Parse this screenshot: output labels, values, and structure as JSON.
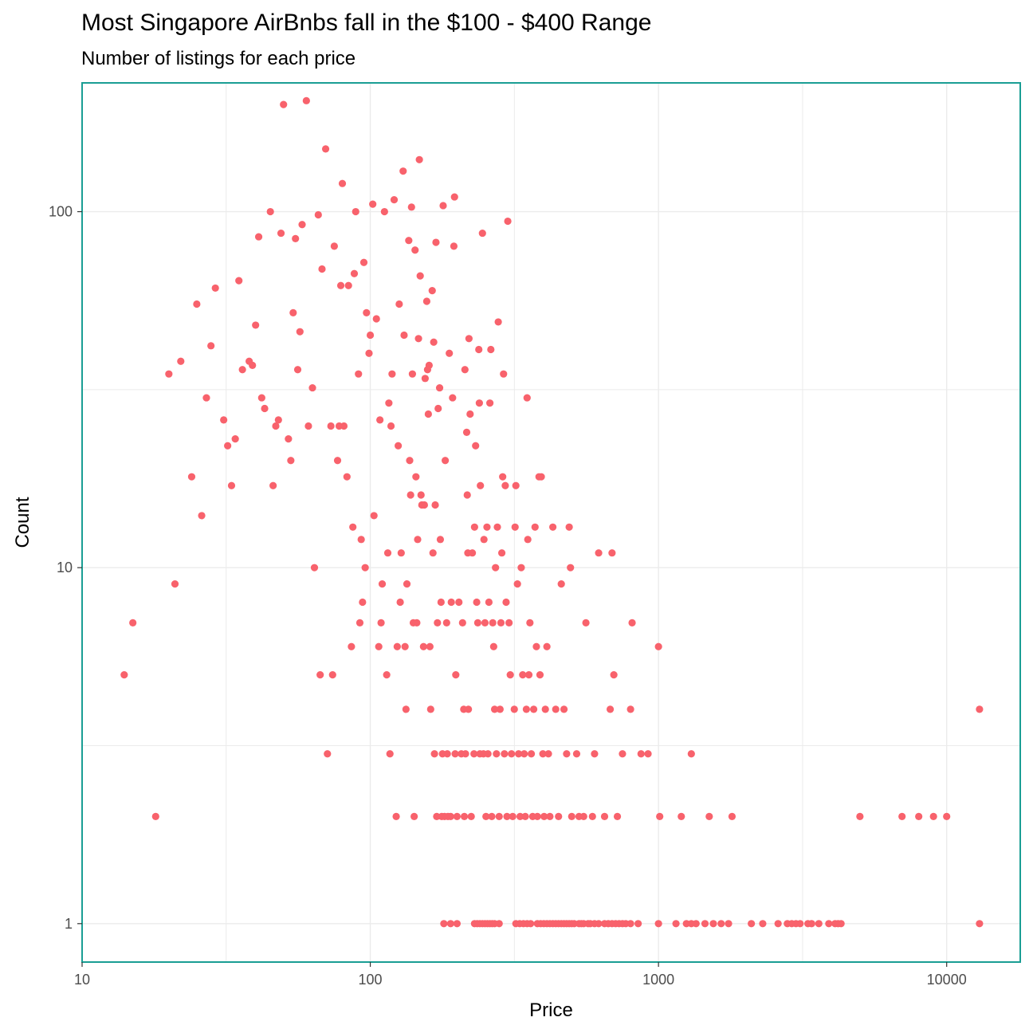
{
  "chart_data": {
    "type": "scatter",
    "title": "Most Singapore AirBnbs fall in the $100 - $400 Range",
    "subtitle": "Number of listings for each price",
    "xlabel": "Price",
    "ylabel": "Count",
    "x_scale": "log10",
    "y_scale": "log10",
    "xlim": [
      10,
      18000
    ],
    "ylim": [
      0.78,
      230
    ],
    "x_ticks": [
      10,
      100,
      1000,
      10000
    ],
    "x_tick_labels": [
      "10",
      "100",
      "1000",
      "10000"
    ],
    "y_ticks": [
      1,
      10,
      100
    ],
    "y_tick_labels": [
      "1",
      "10",
      "100"
    ],
    "grid": true,
    "colors": {
      "points": "#f8626c",
      "panel_border": "#1a9e94",
      "grid": "#ebebeb"
    },
    "points": [
      [
        14,
        5
      ],
      [
        15,
        7
      ],
      [
        18,
        2
      ],
      [
        20,
        35
      ],
      [
        21,
        9
      ],
      [
        22,
        38
      ],
      [
        24,
        18
      ],
      [
        25,
        55
      ],
      [
        26,
        14
      ],
      [
        27,
        30
      ],
      [
        28,
        42
      ],
      [
        29,
        61
      ],
      [
        31,
        26
      ],
      [
        32,
        22
      ],
      [
        33,
        17
      ],
      [
        34,
        23
      ],
      [
        35,
        64
      ],
      [
        36,
        36
      ],
      [
        38,
        38
      ],
      [
        39,
        37
      ],
      [
        40,
        48
      ],
      [
        41,
        85
      ],
      [
        42,
        30
      ],
      [
        43,
        28
      ],
      [
        45,
        100
      ],
      [
        46,
        17
      ],
      [
        47,
        25
      ],
      [
        48,
        26
      ],
      [
        49,
        87
      ],
      [
        50,
        200
      ],
      [
        52,
        23
      ],
      [
        53,
        20
      ],
      [
        54,
        52
      ],
      [
        55,
        84
      ],
      [
        57,
        46
      ],
      [
        56,
        36
      ],
      [
        58,
        92
      ],
      [
        60,
        205
      ],
      [
        61,
        25
      ],
      [
        63,
        32
      ],
      [
        64,
        10
      ],
      [
        66,
        98
      ],
      [
        67,
        5
      ],
      [
        68,
        69
      ],
      [
        70,
        150
      ],
      [
        71,
        3
      ],
      [
        73,
        25
      ],
      [
        74,
        5
      ],
      [
        75,
        80
      ],
      [
        77,
        20
      ],
      [
        78,
        25
      ],
      [
        79,
        62
      ],
      [
        80,
        120
      ],
      [
        81,
        25
      ],
      [
        83,
        18
      ],
      [
        84,
        62
      ],
      [
        86,
        6
      ],
      [
        87,
        13
      ],
      [
        88,
        67
      ],
      [
        89,
        100
      ],
      [
        91,
        35
      ],
      [
        92,
        7
      ],
      [
        93,
        12
      ],
      [
        94,
        8
      ],
      [
        95,
        72
      ],
      [
        96,
        10
      ],
      [
        97,
        52
      ],
      [
        99,
        40
      ],
      [
        100,
        45
      ],
      [
        102,
        105
      ],
      [
        103,
        14
      ],
      [
        105,
        50
      ],
      [
        107,
        6
      ],
      [
        108,
        26
      ],
      [
        109,
        7
      ],
      [
        110,
        9
      ],
      [
        112,
        100
      ],
      [
        114,
        5
      ],
      [
        115,
        11
      ],
      [
        116,
        29
      ],
      [
        117,
        3
      ],
      [
        118,
        25
      ],
      [
        119,
        35
      ],
      [
        121,
        108
      ],
      [
        123,
        2
      ],
      [
        124,
        6
      ],
      [
        125,
        22
      ],
      [
        126,
        55
      ],
      [
        127,
        8
      ],
      [
        128,
        11
      ],
      [
        130,
        130
      ],
      [
        131,
        45
      ],
      [
        132,
        6
      ],
      [
        133,
        4
      ],
      [
        134,
        9
      ],
      [
        136,
        83
      ],
      [
        137,
        20
      ],
      [
        138,
        16
      ],
      [
        139,
        103
      ],
      [
        140,
        35
      ],
      [
        141,
        7
      ],
      [
        142,
        2
      ],
      [
        143,
        78
      ],
      [
        144,
        18
      ],
      [
        145,
        7
      ],
      [
        146,
        12
      ],
      [
        147,
        44
      ],
      [
        148,
        140
      ],
      [
        149,
        66
      ],
      [
        150,
        16
      ],
      [
        151,
        15
      ],
      [
        153,
        6
      ],
      [
        154,
        15
      ],
      [
        155,
        34
      ],
      [
        157,
        56
      ],
      [
        158,
        36
      ],
      [
        159,
        27
      ],
      [
        160,
        37
      ],
      [
        161,
        6
      ],
      [
        162,
        4
      ],
      [
        164,
        60
      ],
      [
        165,
        11
      ],
      [
        166,
        43
      ],
      [
        167,
        3
      ],
      [
        168,
        15
      ],
      [
        169,
        82
      ],
      [
        170,
        2
      ],
      [
        171,
        7
      ],
      [
        172,
        28
      ],
      [
        174,
        32
      ],
      [
        175,
        12
      ],
      [
        176,
        8
      ],
      [
        177,
        2
      ],
      [
        178,
        3
      ],
      [
        179,
        104
      ],
      [
        181,
        2
      ],
      [
        182,
        20
      ],
      [
        184,
        7
      ],
      [
        185,
        3
      ],
      [
        186,
        2
      ],
      [
        188,
        40
      ],
      [
        190,
        2
      ],
      [
        191,
        8
      ],
      [
        193,
        30
      ],
      [
        195,
        80
      ],
      [
        196,
        110
      ],
      [
        197,
        3
      ],
      [
        198,
        5
      ],
      [
        200,
        2
      ],
      [
        203,
        8
      ],
      [
        207,
        3
      ],
      [
        209,
        7
      ],
      [
        211,
        4
      ],
      [
        212,
        2
      ],
      [
        213,
        36
      ],
      [
        214,
        3
      ],
      [
        216,
        24
      ],
      [
        217,
        16
      ],
      [
        218,
        11
      ],
      [
        219,
        4
      ],
      [
        220,
        44
      ],
      [
        222,
        27
      ],
      [
        224,
        2
      ],
      [
        226,
        11
      ],
      [
        229,
        3
      ],
      [
        230,
        13
      ],
      [
        232,
        22
      ],
      [
        234,
        8
      ],
      [
        236,
        7
      ],
      [
        238,
        41
      ],
      [
        239,
        29
      ],
      [
        240,
        3
      ],
      [
        241,
        17
      ],
      [
        245,
        87
      ],
      [
        247,
        3
      ],
      [
        248,
        12
      ],
      [
        250,
        7
      ],
      [
        252,
        2
      ],
      [
        254,
        13
      ],
      [
        256,
        3
      ],
      [
        258,
        8
      ],
      [
        260,
        29
      ],
      [
        262,
        41
      ],
      [
        264,
        2
      ],
      [
        266,
        7
      ],
      [
        268,
        6
      ],
      [
        270,
        4
      ],
      [
        272,
        10
      ],
      [
        274,
        3
      ],
      [
        276,
        13
      ],
      [
        278,
        49
      ],
      [
        280,
        2
      ],
      [
        282,
        4
      ],
      [
        284,
        7
      ],
      [
        286,
        11
      ],
      [
        288,
        18
      ],
      [
        290,
        35
      ],
      [
        292,
        3
      ],
      [
        294,
        17
      ],
      [
        296,
        8
      ],
      [
        298,
        2
      ],
      [
        300,
        94
      ],
      [
        303,
        7
      ],
      [
        306,
        5
      ],
      [
        309,
        3
      ],
      [
        312,
        2
      ],
      [
        316,
        4
      ],
      [
        318,
        13
      ],
      [
        320,
        17
      ],
      [
        324,
        9
      ],
      [
        327,
        3
      ],
      [
        331,
        2
      ],
      [
        334,
        10
      ],
      [
        338,
        5
      ],
      [
        342,
        3
      ],
      [
        345,
        2
      ],
      [
        348,
        4
      ],
      [
        350,
        30
      ],
      [
        352,
        12
      ],
      [
        355,
        5
      ],
      [
        358,
        7
      ],
      [
        362,
        3
      ],
      [
        366,
        2
      ],
      [
        369,
        4
      ],
      [
        373,
        13
      ],
      [
        377,
        6
      ],
      [
        380,
        2
      ],
      [
        385,
        18
      ],
      [
        388,
        5
      ],
      [
        392,
        18
      ],
      [
        397,
        3
      ],
      [
        401,
        2
      ],
      [
        405,
        4
      ],
      [
        410,
        6
      ],
      [
        415,
        3
      ],
      [
        420,
        2
      ],
      [
        430,
        13
      ],
      [
        440,
        4
      ],
      [
        450,
        2
      ],
      [
        460,
        9
      ],
      [
        470,
        4
      ],
      [
        480,
        3
      ],
      [
        490,
        13
      ],
      [
        495,
        10
      ],
      [
        500,
        2
      ],
      [
        520,
        3
      ],
      [
        530,
        2
      ],
      [
        550,
        2
      ],
      [
        560,
        7
      ],
      [
        590,
        2
      ],
      [
        600,
        3
      ],
      [
        620,
        11
      ],
      [
        650,
        2
      ],
      [
        680,
        4
      ],
      [
        690,
        11
      ],
      [
        700,
        5
      ],
      [
        720,
        2
      ],
      [
        750,
        3
      ],
      [
        800,
        4
      ],
      [
        810,
        7
      ],
      [
        870,
        3
      ],
      [
        920,
        3
      ],
      [
        1000,
        6
      ],
      [
        1010,
        2
      ],
      [
        1200,
        2
      ],
      [
        1300,
        3
      ],
      [
        1500,
        2
      ],
      [
        1800,
        2
      ],
      [
        5000,
        2
      ],
      [
        7000,
        2
      ],
      [
        8000,
        2
      ],
      [
        9000,
        2
      ],
      [
        10000,
        2
      ],
      [
        13000,
        4
      ],
      [
        180,
        1
      ],
      [
        190,
        1
      ],
      [
        200,
        1
      ],
      [
        230,
        1
      ],
      [
        235,
        1
      ],
      [
        240,
        1
      ],
      [
        245,
        1
      ],
      [
        250,
        1
      ],
      [
        255,
        1
      ],
      [
        260,
        1
      ],
      [
        265,
        1
      ],
      [
        270,
        1
      ],
      [
        280,
        1
      ],
      [
        320,
        1
      ],
      [
        330,
        1
      ],
      [
        340,
        1
      ],
      [
        350,
        1
      ],
      [
        360,
        1
      ],
      [
        380,
        1
      ],
      [
        390,
        1
      ],
      [
        400,
        1
      ],
      [
        410,
        1
      ],
      [
        420,
        1
      ],
      [
        430,
        1
      ],
      [
        440,
        1
      ],
      [
        450,
        1
      ],
      [
        460,
        1
      ],
      [
        470,
        1
      ],
      [
        480,
        1
      ],
      [
        490,
        1
      ],
      [
        500,
        1
      ],
      [
        510,
        1
      ],
      [
        530,
        1
      ],
      [
        540,
        1
      ],
      [
        550,
        1
      ],
      [
        570,
        1
      ],
      [
        580,
        1
      ],
      [
        600,
        1
      ],
      [
        620,
        1
      ],
      [
        650,
        1
      ],
      [
        670,
        1
      ],
      [
        690,
        1
      ],
      [
        710,
        1
      ],
      [
        730,
        1
      ],
      [
        750,
        1
      ],
      [
        770,
        1
      ],
      [
        800,
        1
      ],
      [
        850,
        1
      ],
      [
        1000,
        1
      ],
      [
        1150,
        1
      ],
      [
        1250,
        1
      ],
      [
        1300,
        1
      ],
      [
        1350,
        1
      ],
      [
        1450,
        1
      ],
      [
        1550,
        1
      ],
      [
        1650,
        1
      ],
      [
        1750,
        1
      ],
      [
        2100,
        1
      ],
      [
        2300,
        1
      ],
      [
        2600,
        1
      ],
      [
        2800,
        1
      ],
      [
        2900,
        1
      ],
      [
        3000,
        1
      ],
      [
        3100,
        1
      ],
      [
        3300,
        1
      ],
      [
        3400,
        1
      ],
      [
        3600,
        1
      ],
      [
        3900,
        1
      ],
      [
        4100,
        1
      ],
      [
        4200,
        1
      ],
      [
        4300,
        1
      ],
      [
        13000,
        1
      ]
    ]
  }
}
